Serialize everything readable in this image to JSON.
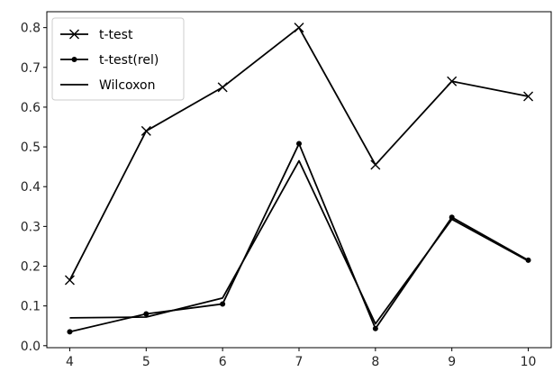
{
  "chart_data": {
    "type": "line",
    "title": "",
    "xlabel": "",
    "ylabel": "",
    "x": [
      4,
      5,
      6,
      7,
      8,
      9,
      10
    ],
    "xlim": [
      3.7,
      10.3
    ],
    "ylim": [
      -0.005,
      0.84
    ],
    "x_ticks": [
      "4",
      "5",
      "6",
      "7",
      "8",
      "9",
      "10"
    ],
    "y_ticks": [
      "0.0",
      "0.1",
      "0.2",
      "0.3",
      "0.4",
      "0.5",
      "0.6",
      "0.7",
      "0.8"
    ],
    "grid": false,
    "legend_position": "top-left",
    "series": [
      {
        "name": "t-test",
        "marker": "x",
        "color": "#000000",
        "values": [
          0.165,
          0.54,
          0.65,
          0.8,
          0.455,
          0.665,
          0.627
        ]
      },
      {
        "name": "t-test(rel)",
        "marker": "dot",
        "color": "#000000",
        "values": [
          0.035,
          0.08,
          0.105,
          0.508,
          0.043,
          0.323,
          0.215
        ]
      },
      {
        "name": "Wilcoxon",
        "marker": "none",
        "color": "#000000",
        "values": [
          0.07,
          0.072,
          0.12,
          0.465,
          0.055,
          0.318,
          0.213
        ]
      }
    ]
  }
}
